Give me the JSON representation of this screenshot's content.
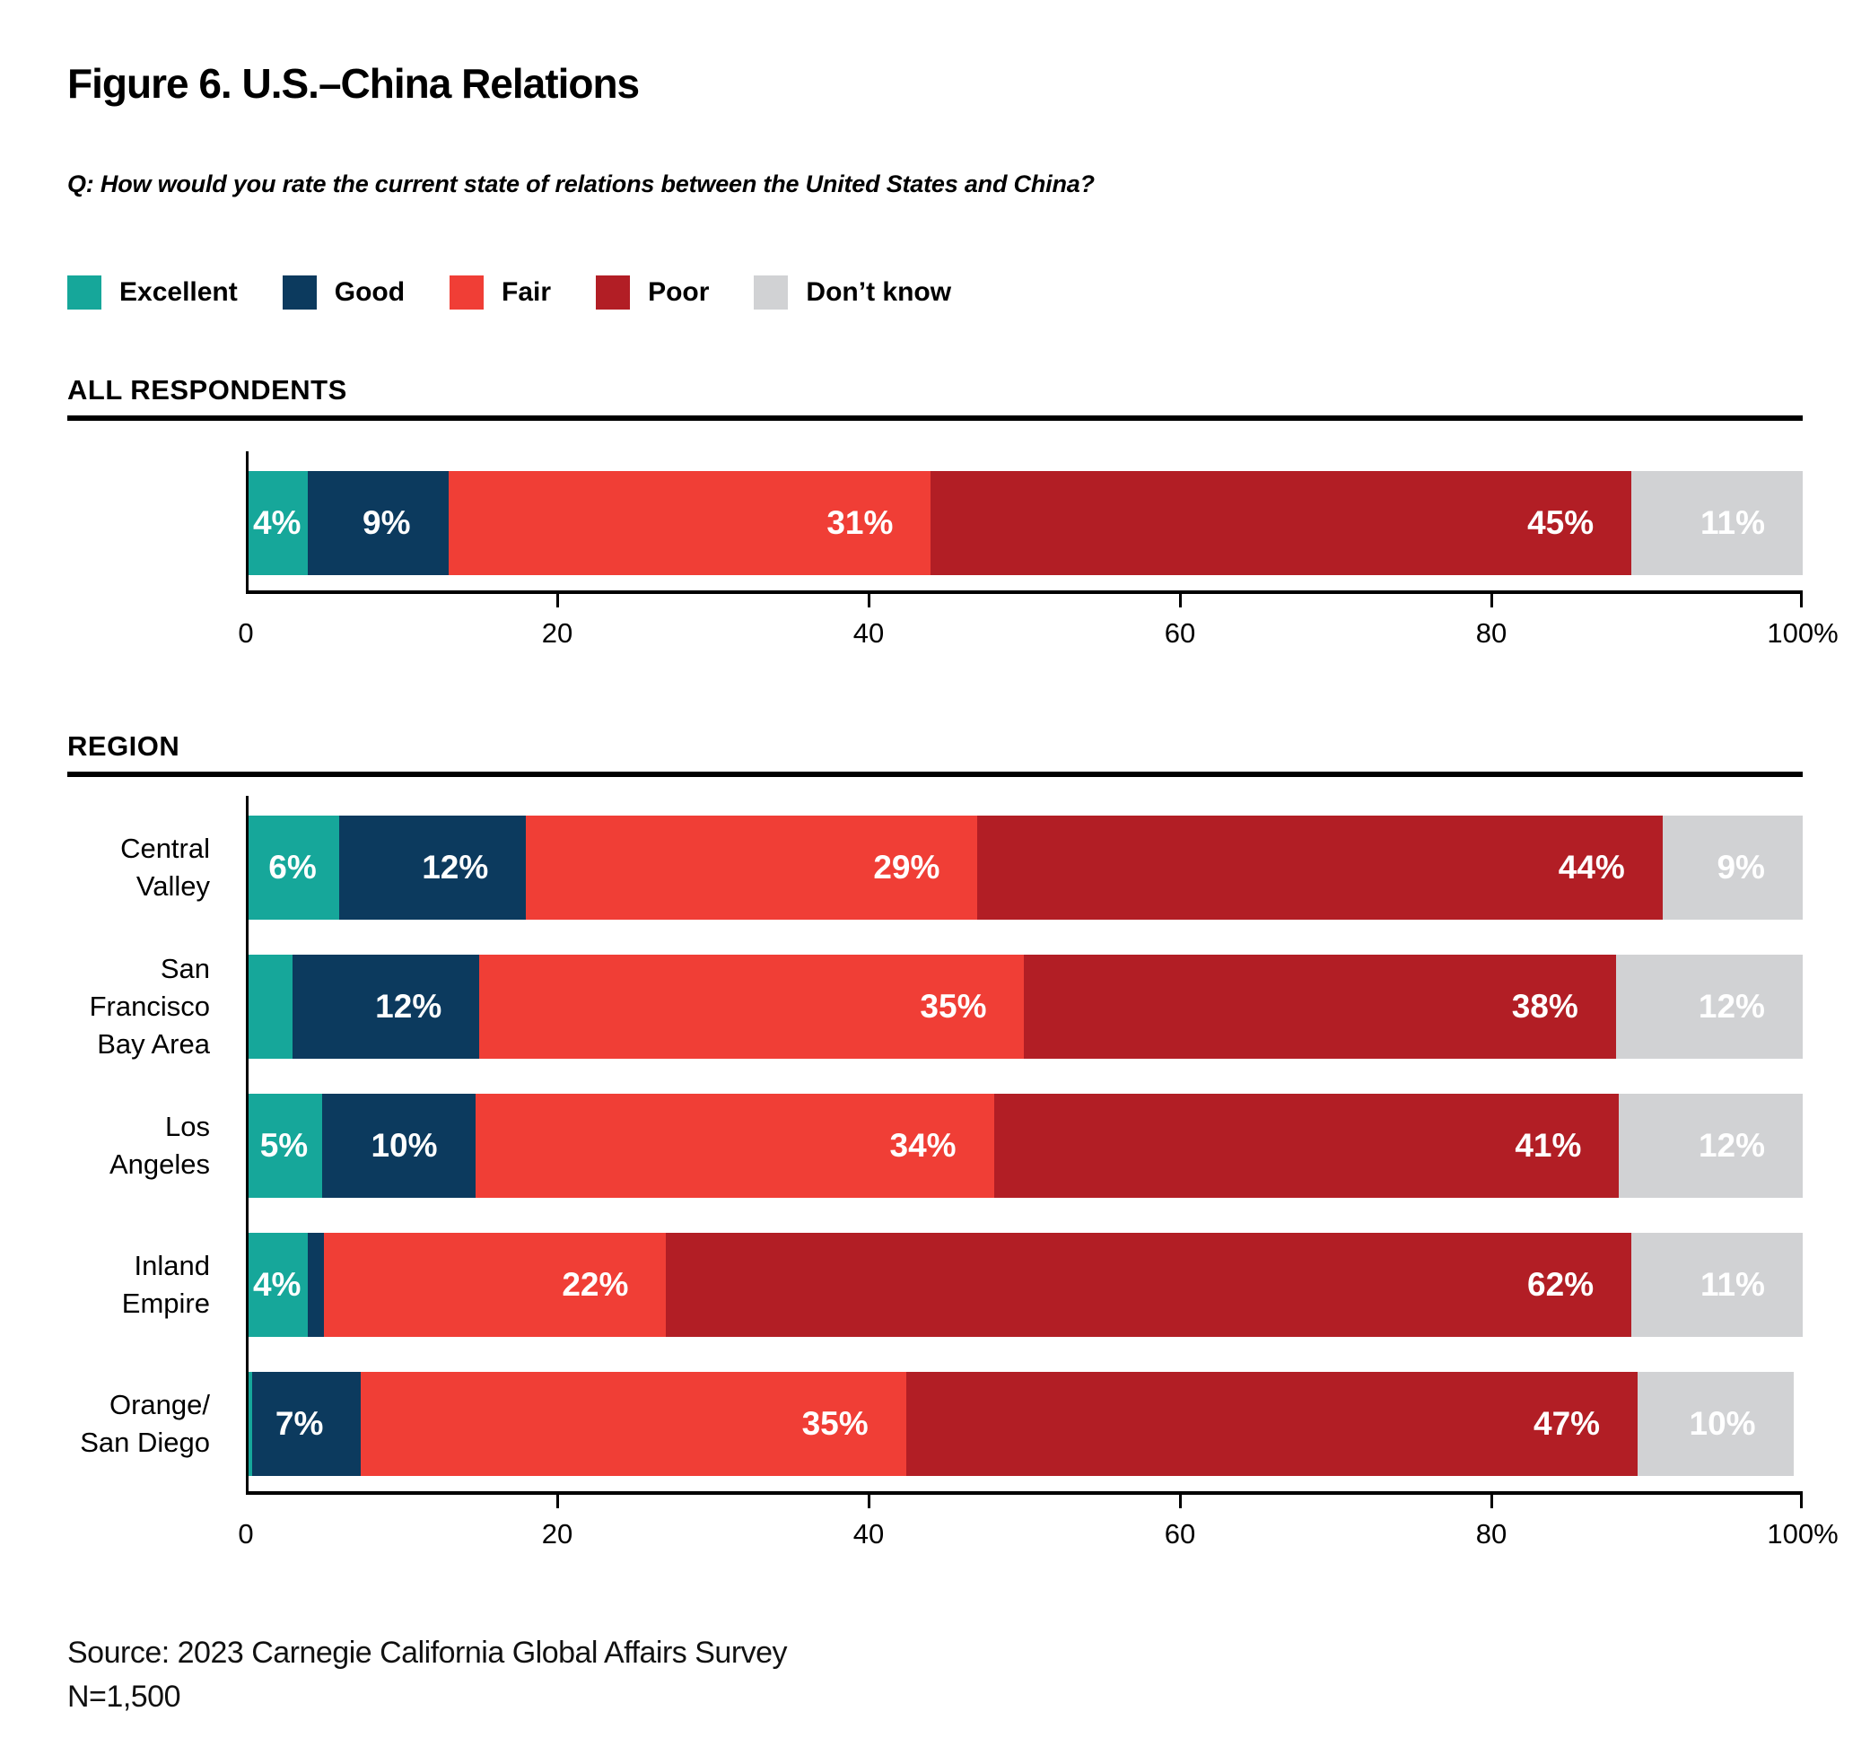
{
  "title": "Figure 6. U.S.–China Relations",
  "question": "Q: How would you rate the current state of relations between the United States and China?",
  "legend": [
    {
      "key": "excellent",
      "label": "Excellent",
      "color": "#16A79A"
    },
    {
      "key": "good",
      "label": "Good",
      "color": "#0C3A5E"
    },
    {
      "key": "fair",
      "label": "Fair",
      "color": "#F03E36"
    },
    {
      "key": "poor",
      "label": "Poor",
      "color": "#B21E25"
    },
    {
      "key": "dont-know",
      "label": "Don’t know",
      "color": "#D1D2D4"
    }
  ],
  "source_line1": "Source: 2023 Carnegie California Global Affairs Survey",
  "source_line2": "N=1,500",
  "chart_data": [
    {
      "type": "bar",
      "subtype": "horizontal-stacked",
      "section": "ALL RESPONDENTS",
      "unit": "%",
      "show_category_labels": false,
      "x_axis": {
        "range": [
          0,
          100
        ],
        "ticks": [
          0,
          20,
          40,
          60,
          80,
          100
        ],
        "tick_labels": [
          "0",
          "20",
          "40",
          "60",
          "80",
          "100%"
        ],
        "grid": false
      },
      "categories": [
        "All respondents"
      ],
      "series": [
        {
          "name": "Excellent",
          "values": [
            4
          ]
        },
        {
          "name": "Good",
          "values": [
            9
          ]
        },
        {
          "name": "Fair",
          "values": [
            31
          ]
        },
        {
          "name": "Poor",
          "values": [
            45
          ]
        },
        {
          "name": "Don’t know",
          "values": [
            11
          ]
        }
      ],
      "data_labels": [
        [
          "4%",
          "9%",
          "31%",
          "45%",
          "11%"
        ]
      ]
    },
    {
      "type": "bar",
      "subtype": "horizontal-stacked",
      "section": "REGION",
      "unit": "%",
      "show_category_labels": true,
      "x_axis": {
        "range": [
          0,
          100
        ],
        "ticks": [
          0,
          20,
          40,
          60,
          80,
          100
        ],
        "tick_labels": [
          "0",
          "20",
          "40",
          "60",
          "80",
          "100%"
        ],
        "grid": false
      },
      "categories": [
        "Central Valley",
        "San Francisco\nBay Area",
        "Los Angeles",
        "Inland Empire",
        "Orange/\nSan Diego"
      ],
      "series": [
        {
          "name": "Excellent",
          "values": [
            6,
            3,
            5,
            4,
            0.4
          ]
        },
        {
          "name": "Good",
          "values": [
            12,
            12,
            10,
            1,
            7
          ]
        },
        {
          "name": "Fair",
          "values": [
            29,
            35,
            34,
            22,
            35
          ]
        },
        {
          "name": "Poor",
          "values": [
            44,
            38,
            41,
            62,
            47
          ]
        },
        {
          "name": "Don’t know",
          "values": [
            9,
            12,
            12,
            11,
            10
          ]
        }
      ],
      "data_labels": [
        [
          "6%",
          "12%",
          "29%",
          "44%",
          "9%"
        ],
        [
          null,
          "12%",
          "35%",
          "38%",
          "12%"
        ],
        [
          "5%",
          "10%",
          "34%",
          "41%",
          "12%"
        ],
        [
          "4%",
          null,
          "22%",
          "62%",
          "11%"
        ],
        [
          null,
          "7%",
          "35%",
          "47%",
          "10%"
        ]
      ]
    }
  ]
}
